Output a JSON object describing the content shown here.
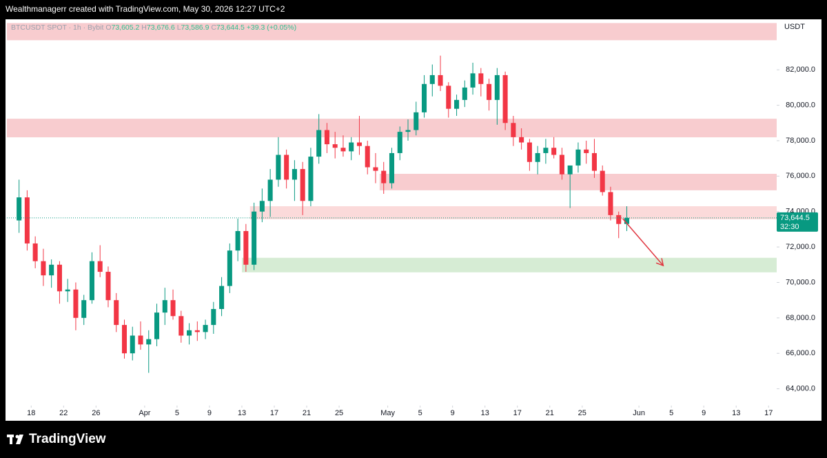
{
  "header": {
    "text": "Wealthmanagerr created with TradingView.com, May 30, 2026 12:27 UTC+2"
  },
  "footer": {
    "brand": "TradingView"
  },
  "chart_data": {
    "type": "candlestick",
    "symbol": "BTCUSDT SPOT · 1h · Bybit",
    "ohlc_legend": [
      {
        "label": "O",
        "value": "73,605.2"
      },
      {
        "label": "H",
        "value": "73,676.6"
      },
      {
        "label": "L",
        "value": "73,586.9"
      },
      {
        "label": "C",
        "value": "73,644.5"
      }
    ],
    "change": "+39.3 (+0.05%)",
    "y_unit": "USDT",
    "up_color": "#089981",
    "down_color": "#f23645",
    "categories": [
      "Mar 16",
      "Mar 17",
      "Mar 18",
      "Mar 19",
      "Mar 20",
      "Mar 21",
      "Mar 22",
      "Mar 23",
      "Mar 24",
      "Mar 25",
      "Mar 26",
      "Mar 27",
      "Mar 28",
      "Mar 29",
      "Mar 30",
      "Mar 31",
      "Apr 1",
      "Apr 2",
      "Apr 3",
      "Apr 4",
      "Apr 5",
      "Apr 6",
      "Apr 7",
      "Apr 8",
      "Apr 9",
      "Apr 10",
      "Apr 11",
      "Apr 12",
      "Apr 13",
      "Apr 14",
      "Apr 15",
      "Apr 16",
      "Apr 17",
      "Apr 18",
      "Apr 19",
      "Apr 20",
      "Apr 21",
      "Apr 22",
      "Apr 23",
      "Apr 24",
      "Apr 25",
      "Apr 26",
      "Apr 27",
      "Apr 28",
      "Apr 29",
      "Apr 30",
      "May 1",
      "May 2",
      "May 3",
      "May 4",
      "May 5",
      "May 6",
      "May 7",
      "May 8",
      "May 9",
      "May 10",
      "May 11",
      "May 12",
      "May 13",
      "May 14",
      "May 15",
      "May 16",
      "May 17",
      "May 18",
      "May 19",
      "May 20",
      "May 21",
      "May 22",
      "May 23",
      "May 24",
      "May 25",
      "May 26",
      "May 27",
      "May 28",
      "May 29",
      "May 30"
    ],
    "open": [
      73500,
      74800,
      72200,
      71200,
      70400,
      71000,
      69500,
      69600,
      68000,
      69000,
      71200,
      70600,
      69000,
      67600,
      66000,
      67000,
      66500,
      66800,
      68300,
      69000,
      68100,
      67000,
      67300,
      67200,
      67600,
      68500,
      69800,
      71800,
      72900,
      71000,
      74000,
      74600,
      75800,
      77200,
      75800,
      76400,
      74600,
      77100,
      78600,
      77800,
      77600,
      77400,
      77900,
      77700,
      76500,
      76300,
      75600,
      77300,
      78500,
      78600,
      79600,
      81200,
      81700,
      81100,
      79800,
      80300,
      81000,
      81800,
      81200,
      80300,
      81700,
      79000,
      78200,
      77900,
      76800,
      77300,
      77600,
      77200,
      76100,
      76600,
      77500,
      77300,
      76300,
      75100,
      73800,
      73300
    ],
    "high": [
      75800,
      75200,
      72600,
      71900,
      71300,
      71200,
      70200,
      70000,
      69300,
      71700,
      72100,
      70900,
      69400,
      67900,
      67500,
      67800,
      67300,
      68800,
      69700,
      69600,
      68400,
      67700,
      67800,
      67900,
      68900,
      70300,
      72200,
      73600,
      73300,
      74500,
      75300,
      76400,
      78200,
      77500,
      76900,
      76800,
      77600,
      79500,
      79000,
      78500,
      78300,
      78200,
      79400,
      78000,
      77300,
      76800,
      77600,
      78800,
      79200,
      80200,
      81700,
      82300,
      82800,
      81300,
      80600,
      81400,
      82400,
      82100,
      81500,
      82100,
      81900,
      79400,
      78700,
      78100,
      77700,
      78100,
      78200,
      77600,
      76500,
      77900,
      78000,
      78100,
      76600,
      75400,
      74000,
      74300
    ],
    "low": [
      72800,
      71800,
      70800,
      69800,
      69700,
      68800,
      68900,
      67300,
      67600,
      68800,
      70300,
      68600,
      67200,
      65700,
      65600,
      66200,
      64900,
      66400,
      67600,
      67900,
      66600,
      66500,
      66700,
      66800,
      67100,
      68100,
      69400,
      71200,
      70600,
      70700,
      73400,
      73700,
      75400,
      75300,
      74600,
      73800,
      74300,
      76700,
      77300,
      77000,
      77100,
      76900,
      77200,
      76100,
      75600,
      75000,
      75300,
      76900,
      78000,
      78300,
      79300,
      80500,
      80800,
      79300,
      79400,
      79900,
      80600,
      80500,
      79700,
      78900,
      78600,
      77700,
      77500,
      76300,
      76100,
      76700,
      77000,
      75800,
      74200,
      76200,
      76700,
      75900,
      74900,
      73500,
      72500,
      72900
    ],
    "close": [
      74800,
      72200,
      71200,
      70400,
      71000,
      69500,
      69600,
      68000,
      69000,
      71200,
      70600,
      69000,
      67600,
      66000,
      67000,
      66500,
      66800,
      68300,
      69000,
      68100,
      67000,
      67300,
      67200,
      67600,
      68500,
      69800,
      71800,
      72900,
      71000,
      74000,
      74600,
      75800,
      77200,
      75800,
      76400,
      74600,
      77100,
      78600,
      77800,
      77600,
      77400,
      77900,
      77700,
      76500,
      76300,
      75600,
      77300,
      78500,
      78600,
      79600,
      81200,
      81700,
      81100,
      79800,
      80300,
      81000,
      81800,
      81200,
      80300,
      81700,
      79000,
      78200,
      77900,
      76800,
      77300,
      77600,
      77200,
      76100,
      76600,
      77500,
      77300,
      76300,
      75100,
      73800,
      73300,
      73644.5
    ],
    "xlim": [
      "Mar 15",
      "Jun 18"
    ],
    "xticks": [
      {
        "value": "Mar 18",
        "label": "18"
      },
      {
        "value": "Mar 22",
        "label": "22"
      },
      {
        "value": "Mar 26",
        "label": "26"
      },
      {
        "value": "Apr 1",
        "label": "Apr"
      },
      {
        "value": "Apr 5",
        "label": "5"
      },
      {
        "value": "Apr 9",
        "label": "9"
      },
      {
        "value": "Apr 13",
        "label": "13"
      },
      {
        "value": "Apr 17",
        "label": "17"
      },
      {
        "value": "Apr 21",
        "label": "21"
      },
      {
        "value": "Apr 25",
        "label": "25"
      },
      {
        "value": "May 1",
        "label": "May"
      },
      {
        "value": "May 5",
        "label": "5"
      },
      {
        "value": "May 9",
        "label": "9"
      },
      {
        "value": "May 13",
        "label": "13"
      },
      {
        "value": "May 17",
        "label": "17"
      },
      {
        "value": "May 21",
        "label": "21"
      },
      {
        "value": "May 25",
        "label": "25"
      },
      {
        "value": "Jun 1",
        "label": "Jun"
      },
      {
        "value": "Jun 5",
        "label": "5"
      },
      {
        "value": "Jun 9",
        "label": "9"
      },
      {
        "value": "Jun 13",
        "label": "13"
      },
      {
        "value": "Jun 17",
        "label": "17"
      }
    ],
    "ylim": [
      63050,
      84850
    ],
    "yticks": [
      {
        "value": 64000,
        "label": "64,000.0"
      },
      {
        "value": 66000,
        "label": "66,000.0"
      },
      {
        "value": 68000,
        "label": "68,000.0"
      },
      {
        "value": 70000,
        "label": "70,000.0"
      },
      {
        "value": 72000,
        "label": "72,000.0"
      },
      {
        "value": 74000,
        "label": "74,000.0"
      },
      {
        "value": 76000,
        "label": "76,000.0"
      },
      {
        "value": 78000,
        "label": "78,000.0"
      },
      {
        "value": 80000,
        "label": "80,000.0"
      },
      {
        "value": 82000,
        "label": "82,000.0"
      }
    ],
    "zones": [
      {
        "from": "Mar 15",
        "top": 84640,
        "bottom": 83670,
        "color": "#f8cccf"
      },
      {
        "from": "Mar 15",
        "top": 79240,
        "bottom": 78190,
        "color": "#f8cccf"
      },
      {
        "from": "Apr 30",
        "top": 76130,
        "bottom": 75200,
        "color": "#f8cccf"
      },
      {
        "from": "Apr 14",
        "top": 74300,
        "bottom": 73560,
        "color": "#fbdada"
      },
      {
        "from": "Apr 13",
        "top": 71390,
        "bottom": 70570,
        "color": "#d6ecd4"
      }
    ],
    "arrow": {
      "from_x": "May 30",
      "from_y": 73600,
      "to_x": "Jun 4",
      "to_y": 70950,
      "color": "#e0353f"
    },
    "last_price": {
      "value": 73644.5,
      "label": "73,644.5",
      "countdown": "32:30",
      "color": "#089981"
    }
  }
}
